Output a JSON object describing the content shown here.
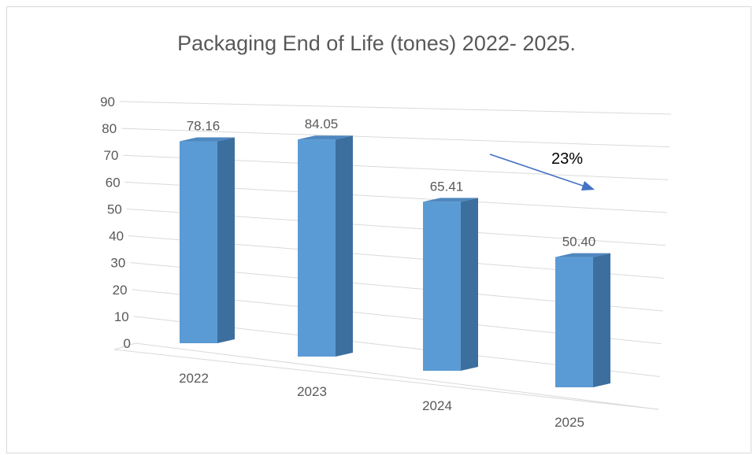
{
  "chart_data": {
    "type": "bar",
    "title": "Packaging End of Life (tones)  2022- 2025.",
    "categories": [
      "2022",
      "2023",
      "2024",
      "2025"
    ],
    "values": [
      78.16,
      84.05,
      65.41,
      50.4
    ],
    "data_labels": [
      "78.16",
      "84.05",
      "65.41",
      "50.40"
    ],
    "ylim": [
      0,
      90
    ],
    "yticks": [
      "0",
      "10",
      "20",
      "30",
      "40",
      "50",
      "60",
      "70",
      "80",
      "90"
    ],
    "grid": true,
    "legend": "none",
    "annotation": {
      "text": "23%"
    },
    "colors": {
      "bar_front": "#5b9bd5",
      "bar_side": "#3d6f9e",
      "bar_top": "#4f87bf",
      "grid": "#d9d9d9",
      "text": "#595959",
      "arrow": "#4472c4"
    }
  }
}
